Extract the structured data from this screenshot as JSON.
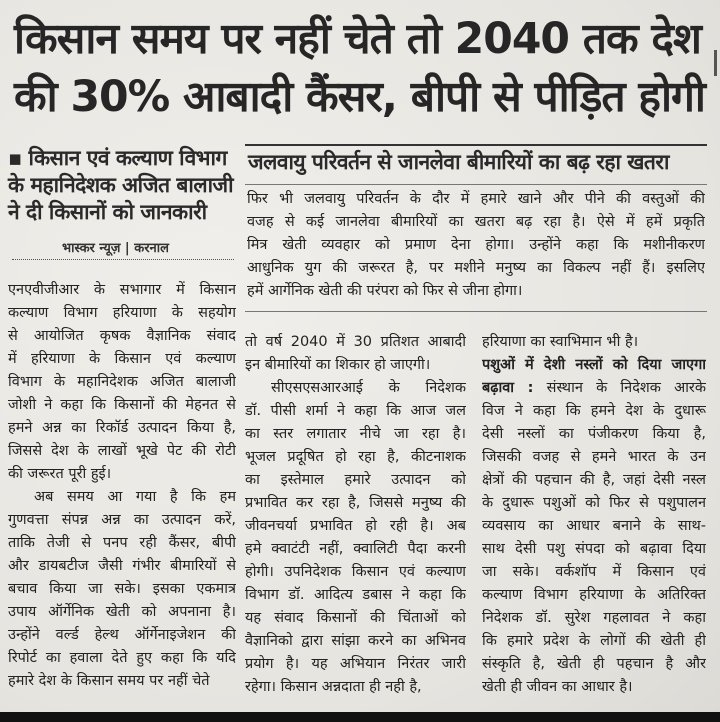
{
  "headline": {
    "line1": "किसान समय पर नहीं चेते तो 2040 तक देश",
    "line2": "की 30% आबादी कैंसर, बीपी से पीड़ित होगी"
  },
  "side_headline": {
    "bullet": "▪",
    "lines": [
      "किसान एवं कल्याण विभाग",
      "के महानिदेशक अजित बालाजी",
      "ने दी किसानों को जानकारी"
    ]
  },
  "byline": "भास्कर न्यूज़ | करनाल",
  "section": {
    "heading": "जलवायु परिवर्तन से जानलेवा बीमारियों का बढ़ रहा खतरा",
    "lines": [
      "फिर भी जलवायु परिवर्तन के दौर में हमारे खाने और पीने की वस्तुओं की",
      "वजह से कई जानलेवा बीमारियों का खतरा बढ़ रहा है। ऐसे में हमें प्रकृति",
      "मित्र खेती व्यवहार को प्रमाण देना होगा। उन्होंने कहा कि मशीनीकरण",
      "आधुनिक युग की जरूरत है, पर मशीने मनुष्य का विकल्प नहीं हैं। इसलिए",
      "हमें आर्गेनिक खेती की परंपरा को फिर से जीना होगा।"
    ]
  },
  "columns": [
    {
      "paragraphs": [
        [
          "एनएवीजीआर के सभागार में किसान",
          "कल्याण विभाग हरियाणा के सहयोग",
          "से आयोजित कृषक वैज्ञानिक संवाद",
          "में हरियाणा के किसान एवं कल्याण",
          "विभाग के महानिदेशक अजित बालाजी",
          "जोशी ने कहा कि किसानों की मेहनत से",
          "हमने अन्न का रिकॉर्ड उत्पादन किया है,",
          "जिससे देश के लाखों भूखे पेट की रोटी",
          "की जरूरत पूरी हुई।"
        ],
        [
          "अब समय आ गया है कि हम",
          "गुणवत्ता संपन्न अन्न का उत्पादन करें,",
          "ताकि तेजी से पनप रही कैंसर, बीपी",
          "और डायबटीज जैसी गंभीर बीमारियों से",
          "बचाव किया जा सके। इसका एकमात्र",
          "उपाय ऑर्गेनिक खेती को अपनाना है।",
          "उन्होंने वर्ल्ड हेल्थ ऑर्गेनाइजेशन की",
          "रिपोर्ट का हवाला देते हुए कहा कि यदि",
          "हमारे देश के किसान समय पर नहीं चेते"
        ]
      ]
    },
    {
      "paragraphs": [
        [
          "तो वर्ष 2040 में 30 प्रतिशत आबादी",
          "इन बीमारियों का शिकार हो जाएगी।"
        ],
        [
          "सीएसएसआरआई के निदेशक",
          "डॉ. पीसी शर्मा ने कहा कि आज जल",
          "का स्तर लगातार नीचे जा रहा है।",
          "भूजल प्रदूषित हो रहा है, कीटनाशक",
          "का इस्तेमाल हमारे उत्पादन को",
          "प्रभावित कर रहा है, जिससे मनुष्य की",
          "जीवनचर्या प्रभावित हो रही है। अब",
          "हमे क्वाटंटी नहीं, क्वालिटी पैदा करनी",
          "होगी। उपनिदेशक किसान एवं कल्याण",
          "विभाग डॉ. आदित्य डबास ने कहा कि",
          "यह संवाद किसानों की चिंताओं को",
          "वैज्ञानिको द्वारा सांझा करने का अभिनव",
          "प्रयोग है। यह अभियान निरंतर जारी",
          "रहेगा। किसान अन्नदाता ही नही है,"
        ]
      ]
    },
    {
      "paragraphs": [
        [
          "हरियाणा का स्वाभिमान भी है।"
        ],
        [
          "पशुओं में देशी नस्लों को दिया जाएगा",
          "बढ़ावा : संस्थान के निदेशक आरके",
          "विज ने कहा कि हमने देश के दुधारू",
          "देसी नस्लों का पंजीकरण किया है,",
          "जिसकी वजह से हमने भारत के उन",
          "क्षेत्रों की पहचान की है, जहां देसी नस्ल",
          "के दुधारू पशुओं को फिर से पशुपालन",
          "व्यवसाय का आधार बनाने के साथ-",
          "साथ देसी पशु संपदा को बढ़ावा दिया",
          "जा सके। वर्कशॉप में किसान एवं",
          "कल्याण विभाग हरियाणा के अतिरिक्त",
          "निदेशक डॉ. सुरेश गहलावत ने कहा",
          "कि हमारे प्रदेश के लोगों की खेती ही",
          "संस्कृति है, खेती ही पहचान है और",
          "खेती ही जीवन का आधार है।"
        ]
      ]
    }
  ]
}
